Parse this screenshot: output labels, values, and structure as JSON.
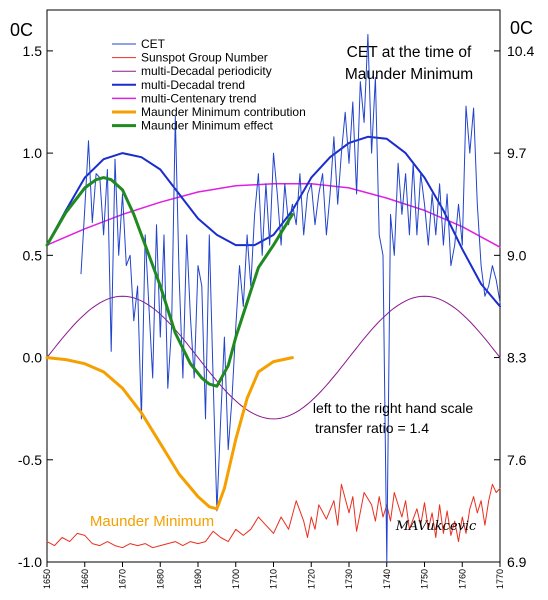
{
  "chart_data": {
    "type": "line",
    "title_lines": [
      "CET at the time of",
      "Maunder  Minimum"
    ],
    "left_unit": "0C",
    "right_unit": "0C",
    "x_range": [
      1650,
      1770
    ],
    "x_ticks": [
      1650,
      1660,
      1670,
      1680,
      1690,
      1700,
      1710,
      1720,
      1730,
      1740,
      1750,
      1760,
      1770
    ],
    "y_left_range": [
      -1.0,
      1.7
    ],
    "y_left_ticks": [
      {
        "value": -1.0,
        "label": "-1.0"
      },
      {
        "value": -0.5,
        "label": "-0.5"
      },
      {
        "value": 0.0,
        "label": "0.0"
      },
      {
        "value": 0.5,
        "label": "0.5"
      },
      {
        "value": 1.0,
        "label": "1.0"
      },
      {
        "value": 1.5,
        "label": "1.5"
      }
    ],
    "y_right_ticks": [
      {
        "value": -1.0,
        "label": "6.9"
      },
      {
        "value": -0.5,
        "label": "7.6"
      },
      {
        "value": 0.0,
        "label": "8.3"
      },
      {
        "value": 0.5,
        "label": "9.0"
      },
      {
        "value": 1.0,
        "label": "9.7"
      },
      {
        "value": 1.5,
        "label": "10.4"
      }
    ],
    "annotations": [
      "left to the right hand scale",
      "transfer ratio = 1.4",
      "Maunder Minimum",
      "MAVukcevic"
    ],
    "series": [
      {
        "name": "CET",
        "color": "#2244cc",
        "width": 1,
        "points": [
          [
            1659,
            0.41
          ],
          [
            1660,
            0.73
          ],
          [
            1661,
            1.06
          ],
          [
            1662,
            0.66
          ],
          [
            1663,
            0.9
          ],
          [
            1664,
            0.88
          ],
          [
            1665,
            0.6
          ],
          [
            1666,
            0.92
          ],
          [
            1667,
            0.03
          ],
          [
            1668,
            0.97
          ],
          [
            1669,
            0.5
          ],
          [
            1670,
            0.8
          ],
          [
            1671,
            0.45
          ],
          [
            1672,
            0.5
          ],
          [
            1673,
            0.18
          ],
          [
            1674,
            0.35
          ],
          [
            1675,
            -0.3
          ],
          [
            1676,
            0.6
          ],
          [
            1677,
            0.25
          ],
          [
            1678,
            -0.1
          ],
          [
            1679,
            0.65
          ],
          [
            1680,
            0.1
          ],
          [
            1681,
            0.6
          ],
          [
            1682,
            -0.15
          ],
          [
            1683,
            0.15
          ],
          [
            1684,
            1.18
          ],
          [
            1685,
            0.4
          ],
          [
            1686,
            -0.1
          ],
          [
            1687,
            0.6
          ],
          [
            1688,
            0.2
          ],
          [
            1689,
            -0.1
          ],
          [
            1690,
            0.45
          ],
          [
            1691,
            0.35
          ],
          [
            1692,
            -0.3
          ],
          [
            1693,
            0.6
          ],
          [
            1694,
            -0.1
          ],
          [
            1695,
            -0.75
          ],
          [
            1696,
            -0.3
          ],
          [
            1697,
            0.1
          ],
          [
            1698,
            -0.45
          ],
          [
            1699,
            -0.2
          ],
          [
            1700,
            0.15
          ],
          [
            1701,
            0.45
          ],
          [
            1702,
            0.25
          ],
          [
            1703,
            0.6
          ],
          [
            1704,
            0.35
          ],
          [
            1705,
            0.7
          ],
          [
            1706,
            0.9
          ],
          [
            1707,
            0.5
          ],
          [
            1708,
            0.85
          ],
          [
            1709,
            0.55
          ],
          [
            1710,
            1.0
          ],
          [
            1711,
            0.8
          ],
          [
            1712,
            0.55
          ],
          [
            1713,
            0.85
          ],
          [
            1714,
            0.65
          ],
          [
            1715,
            0.75
          ],
          [
            1716,
            0.65
          ],
          [
            1717,
            0.9
          ],
          [
            1718,
            0.6
          ],
          [
            1719,
            0.8
          ],
          [
            1720,
            0.85
          ],
          [
            1721,
            0.65
          ],
          [
            1722,
            0.8
          ],
          [
            1723,
            0.9
          ],
          [
            1724,
            0.6
          ],
          [
            1725,
            0.8
          ],
          [
            1726,
            1.08
          ],
          [
            1727,
            0.75
          ],
          [
            1728,
            1.0
          ],
          [
            1729,
            1.2
          ],
          [
            1730,
            0.95
          ],
          [
            1731,
            1.25
          ],
          [
            1732,
            0.8
          ],
          [
            1733,
            1.35
          ],
          [
            1734,
            1.15
          ],
          [
            1735,
            1.58
          ],
          [
            1736,
            1.0
          ],
          [
            1737,
            1.37
          ],
          [
            1738,
            0.6
          ],
          [
            1739,
            0.5
          ],
          [
            1740,
            -1.0
          ],
          [
            1741,
            0.7
          ],
          [
            1742,
            0.5
          ],
          [
            1743,
            0.95
          ],
          [
            1744,
            0.7
          ],
          [
            1745,
            0.9
          ],
          [
            1746,
            0.6
          ],
          [
            1747,
            0.95
          ],
          [
            1748,
            0.6
          ],
          [
            1749,
            0.9
          ],
          [
            1750,
            0.75
          ],
          [
            1751,
            0.55
          ],
          [
            1752,
            0.8
          ],
          [
            1753,
            0.6
          ],
          [
            1754,
            0.85
          ],
          [
            1755,
            0.55
          ],
          [
            1756,
            0.8
          ],
          [
            1757,
            0.45
          ],
          [
            1758,
            0.55
          ],
          [
            1759,
            0.75
          ],
          [
            1760,
            0.55
          ],
          [
            1761,
            1.23
          ],
          [
            1762,
            1.0
          ],
          [
            1763,
            1.22
          ],
          [
            1764,
            0.75
          ],
          [
            1765,
            0.45
          ],
          [
            1766,
            0.3
          ],
          [
            1767,
            0.35
          ],
          [
            1768,
            0.45
          ],
          [
            1769,
            0.38
          ],
          [
            1770,
            0.27
          ]
        ]
      },
      {
        "name": "Sunspot Group Number",
        "color": "#e83020",
        "width": 1,
        "points": [
          [
            1650,
            -0.9
          ],
          [
            1652,
            -0.92
          ],
          [
            1654,
            -0.88
          ],
          [
            1656,
            -0.9
          ],
          [
            1658,
            -0.86
          ],
          [
            1660,
            -0.87
          ],
          [
            1662,
            -0.91
          ],
          [
            1664,
            -0.92
          ],
          [
            1666,
            -0.9
          ],
          [
            1668,
            -0.92
          ],
          [
            1670,
            -0.93
          ],
          [
            1672,
            -0.91
          ],
          [
            1674,
            -0.92
          ],
          [
            1676,
            -0.91
          ],
          [
            1678,
            -0.93
          ],
          [
            1680,
            -0.92
          ],
          [
            1682,
            -0.91
          ],
          [
            1684,
            -0.9
          ],
          [
            1686,
            -0.92
          ],
          [
            1688,
            -0.9
          ],
          [
            1690,
            -0.91
          ],
          [
            1692,
            -0.9
          ],
          [
            1694,
            -0.85
          ],
          [
            1696,
            -0.88
          ],
          [
            1698,
            -0.9
          ],
          [
            1700,
            -0.84
          ],
          [
            1702,
            -0.87
          ],
          [
            1704,
            -0.84
          ],
          [
            1706,
            -0.78
          ],
          [
            1708,
            -0.82
          ],
          [
            1710,
            -0.86
          ],
          [
            1712,
            -0.78
          ],
          [
            1714,
            -0.84
          ],
          [
            1716,
            -0.7
          ],
          [
            1718,
            -0.8
          ],
          [
            1719,
            -0.88
          ],
          [
            1720,
            -0.78
          ],
          [
            1721,
            -0.84
          ],
          [
            1722,
            -0.72
          ],
          [
            1724,
            -0.79
          ],
          [
            1726,
            -0.7
          ],
          [
            1727,
            -0.82
          ],
          [
            1728,
            -0.62
          ],
          [
            1730,
            -0.76
          ],
          [
            1731,
            -0.68
          ],
          [
            1732,
            -0.85
          ],
          [
            1734,
            -0.66
          ],
          [
            1736,
            -0.72
          ],
          [
            1737,
            -0.8
          ],
          [
            1738,
            -0.68
          ],
          [
            1739,
            -0.78
          ],
          [
            1740,
            -0.72
          ],
          [
            1741,
            -0.8
          ],
          [
            1742,
            -0.66
          ],
          [
            1744,
            -0.78
          ],
          [
            1745,
            -0.7
          ],
          [
            1746,
            -0.84
          ],
          [
            1748,
            -0.74
          ],
          [
            1749,
            -0.82
          ],
          [
            1750,
            -0.71
          ],
          [
            1751,
            -0.84
          ],
          [
            1752,
            -0.76
          ],
          [
            1753,
            -0.88
          ],
          [
            1754,
            -0.72
          ],
          [
            1755,
            -0.86
          ],
          [
            1756,
            -0.75
          ],
          [
            1757,
            -0.87
          ],
          [
            1758,
            -0.8
          ],
          [
            1759,
            -0.9
          ],
          [
            1760,
            -0.78
          ],
          [
            1761,
            -0.86
          ],
          [
            1762,
            -0.74
          ],
          [
            1763,
            -0.68
          ],
          [
            1764,
            -0.76
          ],
          [
            1765,
            -0.7
          ],
          [
            1766,
            -0.82
          ],
          [
            1767,
            -0.7
          ],
          [
            1768,
            -0.62
          ],
          [
            1769,
            -0.66
          ],
          [
            1770,
            -0.64
          ]
        ]
      },
      {
        "name": "multi-Decadal periodicity",
        "color": "#8b1a8b",
        "width": 1,
        "formula": "0.3*sin(2*pi*(x-1650)/80)",
        "x_start": 1650,
        "x_end": 1770
      },
      {
        "name": "multi-Decadal trend",
        "color": "#1a2ccc",
        "width": 2,
        "points": [
          [
            1650,
            0.55
          ],
          [
            1655,
            0.72
          ],
          [
            1660,
            0.88
          ],
          [
            1665,
            0.97
          ],
          [
            1670,
            1.0
          ],
          [
            1675,
            0.98
          ],
          [
            1680,
            0.92
          ],
          [
            1685,
            0.8
          ],
          [
            1690,
            0.68
          ],
          [
            1695,
            0.6
          ],
          [
            1700,
            0.55
          ],
          [
            1705,
            0.55
          ],
          [
            1710,
            0.6
          ],
          [
            1715,
            0.72
          ],
          [
            1720,
            0.88
          ],
          [
            1725,
            0.98
          ],
          [
            1730,
            1.05
          ],
          [
            1735,
            1.08
          ],
          [
            1740,
            1.07
          ],
          [
            1745,
            1.0
          ],
          [
            1750,
            0.88
          ],
          [
            1755,
            0.72
          ],
          [
            1760,
            0.53
          ],
          [
            1765,
            0.36
          ],
          [
            1770,
            0.25
          ]
        ]
      },
      {
        "name": "multi-Centenary trend",
        "color": "#e020e0",
        "width": 1.5,
        "points": [
          [
            1650,
            0.55
          ],
          [
            1660,
            0.63
          ],
          [
            1670,
            0.7
          ],
          [
            1680,
            0.76
          ],
          [
            1690,
            0.81
          ],
          [
            1700,
            0.84
          ],
          [
            1710,
            0.85
          ],
          [
            1720,
            0.85
          ],
          [
            1730,
            0.83
          ],
          [
            1740,
            0.78
          ],
          [
            1750,
            0.72
          ],
          [
            1760,
            0.64
          ],
          [
            1770,
            0.54
          ]
        ]
      },
      {
        "name": "Maunder Minimum contribution",
        "color": "#f5a000",
        "width": 3,
        "points": [
          [
            1650,
            0.0
          ],
          [
            1655,
            -0.01
          ],
          [
            1660,
            -0.03
          ],
          [
            1665,
            -0.07
          ],
          [
            1670,
            -0.15
          ],
          [
            1675,
            -0.27
          ],
          [
            1680,
            -0.42
          ],
          [
            1685,
            -0.57
          ],
          [
            1690,
            -0.68
          ],
          [
            1693,
            -0.73
          ],
          [
            1695,
            -0.74
          ],
          [
            1697,
            -0.64
          ],
          [
            1700,
            -0.4
          ],
          [
            1703,
            -0.2
          ],
          [
            1706,
            -0.07
          ],
          [
            1710,
            -0.02
          ],
          [
            1715,
            0.0
          ]
        ]
      },
      {
        "name": "Maunder Minimum effect",
        "color": "#1f8a1f",
        "width": 3,
        "points": [
          [
            1650,
            0.55
          ],
          [
            1655,
            0.71
          ],
          [
            1660,
            0.83
          ],
          [
            1663,
            0.87
          ],
          [
            1665,
            0.88
          ],
          [
            1667,
            0.87
          ],
          [
            1670,
            0.82
          ],
          [
            1673,
            0.7
          ],
          [
            1676,
            0.55
          ],
          [
            1680,
            0.35
          ],
          [
            1684,
            0.12
          ],
          [
            1688,
            -0.03
          ],
          [
            1691,
            -0.1
          ],
          [
            1693,
            -0.13
          ],
          [
            1695,
            -0.14
          ],
          [
            1698,
            -0.04
          ],
          [
            1700,
            0.1
          ],
          [
            1703,
            0.27
          ],
          [
            1706,
            0.44
          ],
          [
            1710,
            0.55
          ],
          [
            1713,
            0.64
          ],
          [
            1715,
            0.7
          ]
        ]
      }
    ]
  }
}
